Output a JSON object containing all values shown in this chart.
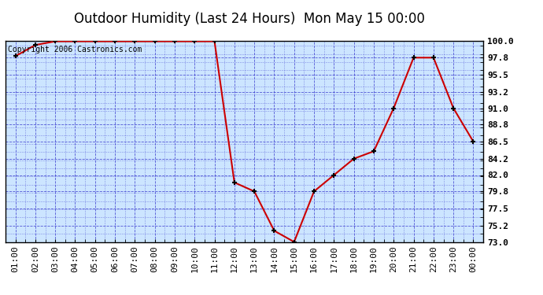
{
  "title": "Outdoor Humidity (Last 24 Hours)  Mon May 15 00:00",
  "copyright": "Copyright 2006 Castronics.com",
  "x_labels": [
    "01:00",
    "02:00",
    "03:00",
    "04:00",
    "05:00",
    "06:00",
    "07:00",
    "08:00",
    "09:00",
    "10:00",
    "11:00",
    "12:00",
    "13:00",
    "14:00",
    "15:00",
    "16:00",
    "17:00",
    "18:00",
    "19:00",
    "20:00",
    "21:00",
    "22:00",
    "23:00",
    "00:00"
  ],
  "x_values": [
    1,
    2,
    3,
    4,
    5,
    6,
    7,
    8,
    9,
    10,
    11,
    12,
    13,
    14,
    15,
    16,
    17,
    18,
    19,
    20,
    21,
    22,
    23,
    24
  ],
  "y_values": [
    98.0,
    99.5,
    100.0,
    100.0,
    100.0,
    100.0,
    100.0,
    100.0,
    100.0,
    100.0,
    100.0,
    81.0,
    79.8,
    74.5,
    73.0,
    79.8,
    82.0,
    84.2,
    85.2,
    91.0,
    97.8,
    97.8,
    91.0,
    86.5
  ],
  "ylim": [
    73.0,
    100.0
  ],
  "yticks": [
    73.0,
    75.2,
    77.5,
    79.8,
    82.0,
    84.2,
    86.5,
    88.8,
    91.0,
    93.2,
    95.5,
    97.8,
    100.0
  ],
  "line_color": "#cc0000",
  "marker_color": "#000000",
  "bg_color": "#ffffff",
  "plot_bg_color": "#cce5ff",
  "grid_color": "#3333cc",
  "title_fontsize": 12,
  "copyright_fontsize": 7,
  "tick_fontsize": 8
}
